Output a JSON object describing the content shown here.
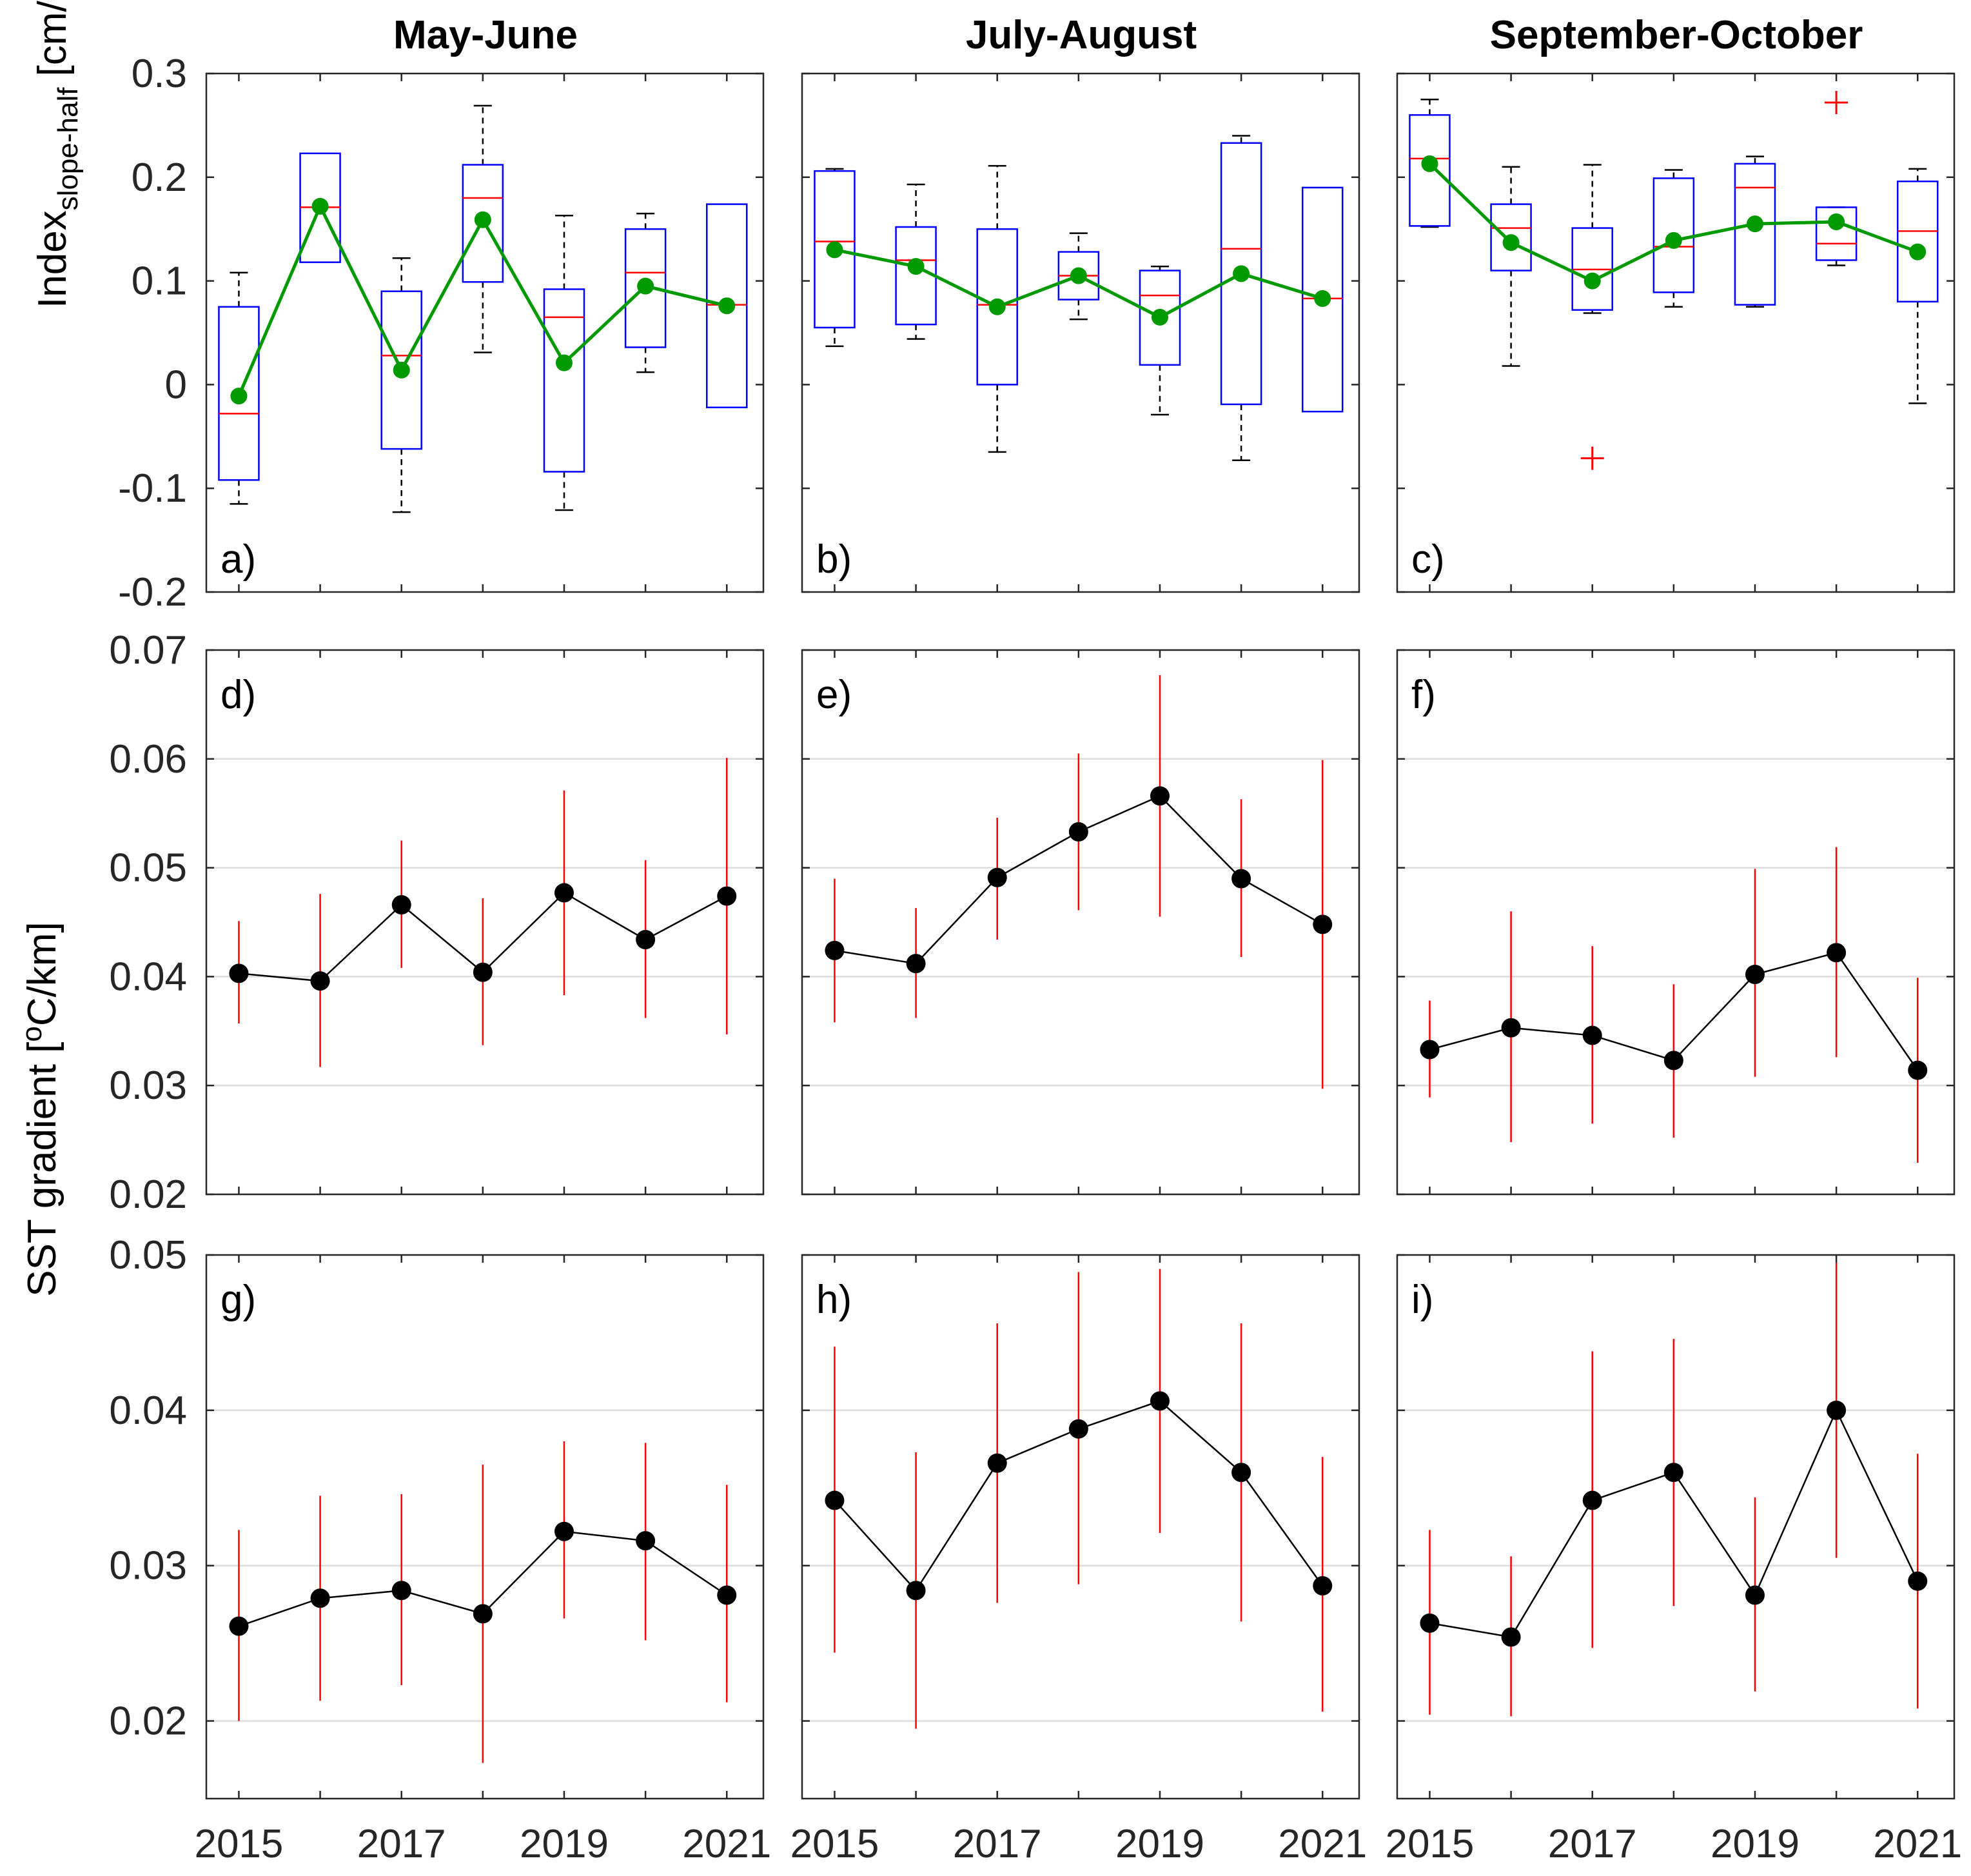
{
  "columns": [
    "May-June",
    "July-August",
    "September-October"
  ],
  "y_labels": {
    "row1_main": "Index",
    "row1_sub": "slope-half",
    "row1_unit": " [cm/km]",
    "rows23_main": "SST gradient [",
    "rows23_sup": "o",
    "rows23_unit": "C/km]"
  },
  "colors": {
    "box": "#0000ff",
    "median": "#ff0000",
    "mean_line": "#009900",
    "point": "#000000",
    "errorbar": "#ff0000",
    "grid": "#dddddd",
    "axis": "#262626"
  },
  "chart_data": [
    {
      "type": "box",
      "panel": "a)",
      "column": "May-June",
      "x": [
        2015,
        2016,
        2017,
        2018,
        2019,
        2020,
        2021
      ],
      "ylim": [
        -0.2,
        0.3
      ],
      "yticks": [
        -0.2,
        -0.1,
        0,
        0.1,
        0.2,
        0.3
      ],
      "ytick_labels": [
        "-0.2",
        "-0.1",
        "0",
        "0.1",
        "0.2",
        "0.3"
      ],
      "boxes": [
        {
          "q1": -0.092,
          "median": -0.028,
          "q3": 0.075,
          "wlo": -0.115,
          "whi": 0.108
        },
        {
          "q1": 0.118,
          "median": 0.171,
          "q3": 0.223
        },
        {
          "q1": -0.062,
          "median": 0.028,
          "q3": 0.09,
          "wlo": -0.123,
          "whi": 0.122
        },
        {
          "q1": 0.099,
          "median": 0.18,
          "q3": 0.212,
          "wlo": 0.031,
          "whi": 0.269
        },
        {
          "q1": -0.084,
          "median": 0.065,
          "q3": 0.092,
          "wlo": -0.121,
          "whi": 0.163
        },
        {
          "q1": 0.036,
          "median": 0.108,
          "q3": 0.15,
          "wlo": 0.012,
          "whi": 0.165
        },
        {
          "q1": -0.022,
          "median": 0.077,
          "q3": 0.174
        }
      ],
      "mean": [
        -0.011,
        0.172,
        0.014,
        0.159,
        0.021,
        0.095,
        0.076
      ],
      "outliers": []
    },
    {
      "type": "box",
      "panel": "b)",
      "column": "July-August",
      "x": [
        2015,
        2016,
        2017,
        2018,
        2019,
        2020,
        2021
      ],
      "ylim": [
        -0.2,
        0.3
      ],
      "yticks": [
        -0.2,
        -0.1,
        0,
        0.1,
        0.2,
        0.3
      ],
      "boxes": [
        {
          "q1": 0.055,
          "median": 0.138,
          "q3": 0.206,
          "wlo": 0.037,
          "whi": 0.208
        },
        {
          "q1": 0.058,
          "median": 0.12,
          "q3": 0.152,
          "wlo": 0.044,
          "whi": 0.193
        },
        {
          "q1": 0.0,
          "median": 0.077,
          "q3": 0.15,
          "wlo": -0.065,
          "whi": 0.211
        },
        {
          "q1": 0.082,
          "median": 0.105,
          "q3": 0.128,
          "wlo": 0.063,
          "whi": 0.146
        },
        {
          "q1": 0.019,
          "median": 0.086,
          "q3": 0.11,
          "wlo": -0.029,
          "whi": 0.114
        },
        {
          "q1": -0.019,
          "median": 0.131,
          "q3": 0.233,
          "wlo": -0.073,
          "whi": 0.24
        },
        {
          "q1": -0.026,
          "median": 0.083,
          "q3": 0.19
        }
      ],
      "mean": [
        0.13,
        0.114,
        0.075,
        0.105,
        0.065,
        0.107,
        0.083
      ],
      "outliers": []
    },
    {
      "type": "box",
      "panel": "c)",
      "column": "September-October",
      "x": [
        2015,
        2016,
        2017,
        2018,
        2019,
        2020,
        2021
      ],
      "ylim": [
        -0.2,
        0.3
      ],
      "yticks": [
        -0.2,
        -0.1,
        0,
        0.1,
        0.2,
        0.3
      ],
      "boxes": [
        {
          "q1": 0.153,
          "median": 0.218,
          "q3": 0.26,
          "wlo": 0.152,
          "whi": 0.275
        },
        {
          "q1": 0.11,
          "median": 0.151,
          "q3": 0.174,
          "wlo": 0.018,
          "whi": 0.21
        },
        {
          "q1": 0.072,
          "median": 0.111,
          "q3": 0.151,
          "wlo": 0.069,
          "whi": 0.212
        },
        {
          "q1": 0.089,
          "median": 0.133,
          "q3": 0.199,
          "wlo": 0.075,
          "whi": 0.207
        },
        {
          "q1": 0.077,
          "median": 0.19,
          "q3": 0.213,
          "wlo": 0.075,
          "whi": 0.22
        },
        {
          "q1": 0.12,
          "median": 0.136,
          "q3": 0.171,
          "wlo": 0.115,
          "whi": 0.171
        },
        {
          "q1": 0.08,
          "median": 0.148,
          "q3": 0.196,
          "wlo": -0.018,
          "whi": 0.208
        }
      ],
      "mean": [
        0.213,
        0.137,
        0.1,
        0.139,
        0.155,
        0.157,
        0.128
      ],
      "outliers": [
        {
          "x": 2017,
          "y": -0.071
        },
        {
          "x": 2020,
          "y": 0.272
        }
      ]
    },
    {
      "type": "errorbar",
      "panel": "d)",
      "column": "May-June",
      "x": [
        2015,
        2016,
        2017,
        2018,
        2019,
        2020,
        2021
      ],
      "ylim": [
        0.02,
        0.07
      ],
      "yticks": [
        0.02,
        0.03,
        0.04,
        0.05,
        0.06,
        0.07
      ],
      "ytick_labels": [
        "0.02",
        "0.03",
        "0.04",
        "0.05",
        "0.06",
        "0.07"
      ],
      "values": [
        0.0403,
        0.0396,
        0.0466,
        0.0404,
        0.0477,
        0.0434,
        0.0474
      ],
      "low": [
        0.0357,
        0.0317,
        0.0408,
        0.0337,
        0.0383,
        0.0362,
        0.0347
      ],
      "high": [
        0.0451,
        0.0476,
        0.0525,
        0.0472,
        0.0571,
        0.0507,
        0.0601
      ]
    },
    {
      "type": "errorbar",
      "panel": "e)",
      "column": "July-August",
      "x": [
        2015,
        2016,
        2017,
        2018,
        2019,
        2020,
        2021
      ],
      "ylim": [
        0.02,
        0.07
      ],
      "yticks": [
        0.02,
        0.03,
        0.04,
        0.05,
        0.06,
        0.07
      ],
      "values": [
        0.0424,
        0.0412,
        0.0491,
        0.0533,
        0.0566,
        0.049,
        0.0448
      ],
      "low": [
        0.0358,
        0.0362,
        0.0434,
        0.0461,
        0.0455,
        0.0418,
        0.0297
      ],
      "high": [
        0.049,
        0.0463,
        0.0546,
        0.0605,
        0.0677,
        0.0563,
        0.0599
      ]
    },
    {
      "type": "errorbar",
      "panel": "f)",
      "column": "September-October",
      "x": [
        2015,
        2016,
        2017,
        2018,
        2019,
        2020,
        2021
      ],
      "ylim": [
        0.02,
        0.07
      ],
      "yticks": [
        0.02,
        0.03,
        0.04,
        0.05,
        0.06,
        0.07
      ],
      "values": [
        0.0333,
        0.0353,
        0.0346,
        0.0323,
        0.0402,
        0.0422,
        0.0314
      ],
      "low": [
        0.0289,
        0.0248,
        0.0265,
        0.0252,
        0.0308,
        0.0326,
        0.0229
      ],
      "high": [
        0.0378,
        0.046,
        0.0428,
        0.0393,
        0.0499,
        0.0519,
        0.0399
      ]
    },
    {
      "type": "errorbar",
      "panel": "g)",
      "column": "May-June",
      "x": [
        2015,
        2016,
        2017,
        2018,
        2019,
        2020,
        2021
      ],
      "ylim": [
        0.015,
        0.05
      ],
      "yticks": [
        0.02,
        0.03,
        0.04,
        0.05
      ],
      "ytick_labels": [
        "0.02",
        "0.03",
        "0.04",
        "0.05"
      ],
      "values": [
        0.0261,
        0.0279,
        0.0284,
        0.0269,
        0.0322,
        0.0316,
        0.0281
      ],
      "low": [
        0.02,
        0.0213,
        0.0223,
        0.0173,
        0.0266,
        0.0252,
        0.0212
      ],
      "high": [
        0.0323,
        0.0345,
        0.0346,
        0.0365,
        0.038,
        0.0379,
        0.0352
      ]
    },
    {
      "type": "errorbar",
      "panel": "h)",
      "column": "July-August",
      "x": [
        2015,
        2016,
        2017,
        2018,
        2019,
        2020,
        2021
      ],
      "ylim": [
        0.015,
        0.05
      ],
      "yticks": [
        0.02,
        0.03,
        0.04,
        0.05
      ],
      "values": [
        0.0342,
        0.0284,
        0.0366,
        0.0388,
        0.0406,
        0.036,
        0.0287
      ],
      "low": [
        0.0244,
        0.0195,
        0.0276,
        0.0288,
        0.0321,
        0.0264,
        0.0206
      ],
      "high": [
        0.0441,
        0.0373,
        0.0456,
        0.0489,
        0.0491,
        0.0456,
        0.037
      ]
    },
    {
      "type": "errorbar",
      "panel": "i)",
      "column": "September-October",
      "x": [
        2015,
        2016,
        2017,
        2018,
        2019,
        2020,
        2021
      ],
      "ylim": [
        0.015,
        0.05
      ],
      "yticks": [
        0.02,
        0.03,
        0.04,
        0.05
      ],
      "values": [
        0.0263,
        0.0254,
        0.0342,
        0.036,
        0.0281,
        0.04,
        0.029
      ],
      "low": [
        0.0204,
        0.0203,
        0.0247,
        0.0274,
        0.0219,
        0.0305,
        0.0208
      ],
      "high": [
        0.0323,
        0.0306,
        0.0438,
        0.0446,
        0.0344,
        0.0495,
        0.0372
      ]
    }
  ],
  "x_tick_labels": [
    "2015",
    "2017",
    "2019",
    "2021"
  ]
}
